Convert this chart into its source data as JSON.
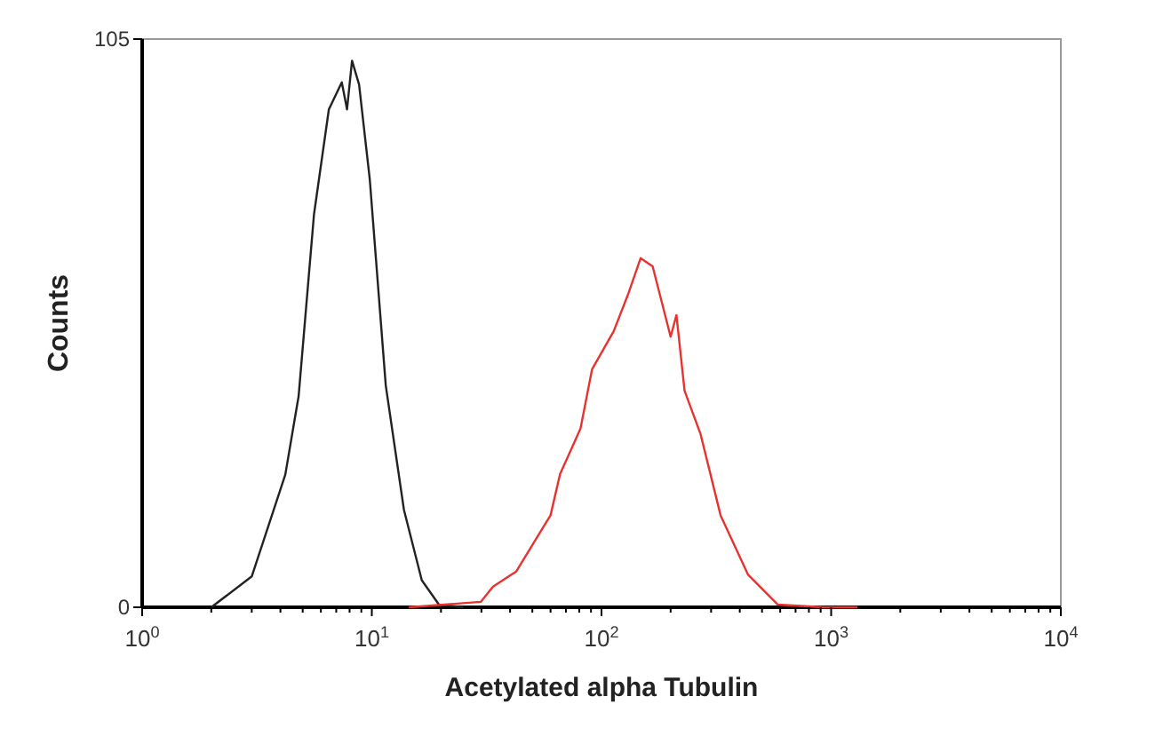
{
  "chart_data": {
    "type": "line",
    "xlabel": "Acetylated alpha Tubulin",
    "ylabel": "Counts",
    "log": "x",
    "xlim": [
      1,
      10000
    ],
    "ylim": [
      0,
      105
    ],
    "yticks": [
      0,
      105
    ],
    "marker": "none",
    "line_style": "solid",
    "xticks": [
      {
        "value": 1,
        "label": "10$^{0}$"
      },
      {
        "value": 2,
        "label": null
      },
      {
        "value": 3,
        "label": null
      },
      {
        "value": 4,
        "label": null
      },
      {
        "value": 5,
        "label": null
      },
      {
        "value": 6,
        "label": null
      },
      {
        "value": 7,
        "label": null
      },
      {
        "value": 8,
        "label": null
      },
      {
        "value": 9,
        "label": null
      },
      {
        "value": 10,
        "label": "10$^{1}$"
      },
      {
        "value": 20,
        "label": null
      },
      {
        "value": 30,
        "label": null
      },
      {
        "value": 40,
        "label": null
      },
      {
        "value": 50,
        "label": null
      },
      {
        "value": 60,
        "label": null
      },
      {
        "value": 70,
        "label": null
      },
      {
        "value": 80,
        "label": null
      },
      {
        "value": 90,
        "label": null
      },
      {
        "value": 100,
        "label": "10$^{2}$"
      },
      {
        "value": 200,
        "label": null
      },
      {
        "value": 300,
        "label": null
      },
      {
        "value": 400,
        "label": null
      },
      {
        "value": 500,
        "label": null
      },
      {
        "value": 600,
        "label": null
      },
      {
        "value": 700,
        "label": null
      },
      {
        "value": 800,
        "label": null
      },
      {
        "value": 900,
        "label": null
      },
      {
        "value": 1000,
        "label": "10$^{3}$"
      },
      {
        "value": 2000,
        "label": null
      },
      {
        "value": 3000,
        "label": null
      },
      {
        "value": 4000,
        "label": null
      },
      {
        "value": 5000,
        "label": null
      },
      {
        "value": 6000,
        "label": null
      },
      {
        "value": 7000,
        "label": null
      },
      {
        "value": 8000,
        "label": null
      },
      {
        "value": 9000,
        "label": null
      },
      {
        "value": 10000,
        "label": "10$^{4}$"
      }
    ],
    "series": [
      {
        "color": "#222222",
        "x": [
          2.0,
          3.0,
          4.2,
          4.8,
          5.6,
          6.5,
          7.4,
          7.8,
          8.2,
          8.8,
          9.8,
          11.5,
          13.8,
          16.5,
          19.6,
          25
        ],
        "values": [
          0,
          5.7,
          24.5,
          39,
          72.6,
          92,
          97,
          92,
          101,
          96.6,
          79,
          41,
          18,
          5,
          0.5,
          0
        ]
      },
      {
        "color": "#e8322f",
        "x": [
          14.5,
          29.8,
          33.7,
          42.5,
          52.5,
          60,
          66,
          81,
          91,
          113,
          131,
          148,
          167,
          200,
          212,
          230,
          270,
          330,
          435,
          585,
          930,
          1300
        ],
        "values": [
          0,
          1,
          3.8,
          6.6,
          13,
          17,
          24.6,
          33,
          44,
          51,
          58,
          64.5,
          63,
          50,
          54,
          40,
          32,
          17,
          6,
          0.5,
          0,
          0
        ]
      }
    ]
  }
}
